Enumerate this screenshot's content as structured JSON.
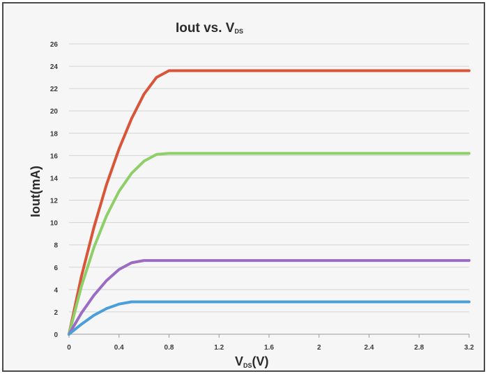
{
  "chart_data": {
    "type": "line",
    "title": {
      "main": "Iout vs. V",
      "sub": "DS"
    },
    "xlabel": {
      "main": "V",
      "sub": "DS",
      "tail": "(V)"
    },
    "ylabel": "Iout(mA)",
    "xlim": [
      0,
      3.2
    ],
    "ylim": [
      0,
      26
    ],
    "xticks": [
      0,
      0.4,
      0.8,
      1.2,
      1.6,
      2,
      2.4,
      2.8,
      3.2
    ],
    "xtick_labels": [
      "0",
      "0.4",
      "0.8",
      "1.2",
      "1.6",
      "2",
      "2.4",
      "2.8",
      "3.2"
    ],
    "yticks": [
      0,
      2,
      4,
      6,
      8,
      10,
      12,
      14,
      16,
      18,
      20,
      22,
      24,
      26
    ],
    "ytick_labels": [
      "0",
      "2",
      "4",
      "6",
      "8",
      "10",
      "12",
      "14",
      "16",
      "18",
      "20",
      "22",
      "24",
      "26"
    ],
    "grid": true,
    "legend": "none",
    "series": [
      {
        "color": "#d9553a",
        "x": [
          0,
          0.1,
          0.2,
          0.3,
          0.4,
          0.5,
          0.6,
          0.7,
          0.8,
          0.9,
          3.2
        ],
        "y": [
          0,
          5.2,
          9.6,
          13.4,
          16.6,
          19.3,
          21.5,
          23.0,
          23.6,
          23.6,
          23.6
        ]
      },
      {
        "color": "#8fcf6a",
        "x": [
          0,
          0.1,
          0.2,
          0.3,
          0.4,
          0.5,
          0.6,
          0.7,
          0.8,
          3.2
        ],
        "y": [
          0,
          4.3,
          7.8,
          10.6,
          12.8,
          14.4,
          15.5,
          16.1,
          16.2,
          16.2
        ]
      },
      {
        "color": "#9a6cc4",
        "x": [
          0,
          0.1,
          0.2,
          0.3,
          0.4,
          0.5,
          0.6,
          3.2
        ],
        "y": [
          0,
          1.9,
          3.5,
          4.8,
          5.8,
          6.4,
          6.6,
          6.6
        ]
      },
      {
        "color": "#4a9fd8",
        "x": [
          0,
          0.1,
          0.2,
          0.3,
          0.4,
          0.5,
          0.6,
          3.2
        ],
        "y": [
          0,
          0.9,
          1.7,
          2.3,
          2.7,
          2.9,
          2.9,
          2.9
        ]
      }
    ]
  }
}
